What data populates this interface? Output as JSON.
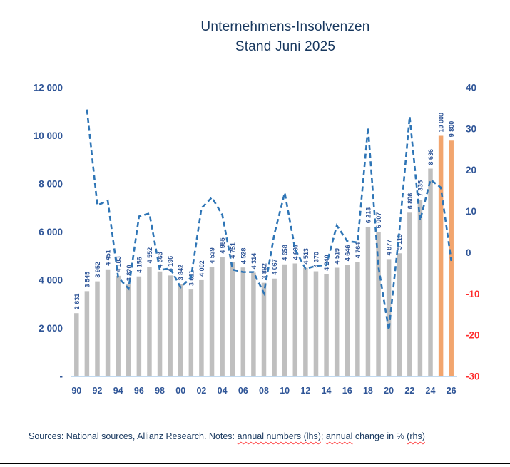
{
  "title": {
    "line1": "Unternehmens-Insolvenzen",
    "line2": "Stand Juni 2025"
  },
  "footer": {
    "segments": [
      {
        "text": "Sources: National sources, Allianz Research. Notes: ",
        "wavy": false
      },
      {
        "text": "annual numbers (lhs)",
        "wavy": true
      },
      {
        "text": "; ",
        "wavy": false
      },
      {
        "text": "annual",
        "wavy": true
      },
      {
        "text": " change in % ",
        "wavy": false
      },
      {
        "text": "(rhs)",
        "wavy": true
      }
    ]
  },
  "chart_data": {
    "type": "bar",
    "title": "Unternehmens-Insolvenzen Stand Juni 2025",
    "categories": [
      1990,
      1991,
      1992,
      1993,
      1994,
      1995,
      1996,
      1997,
      1998,
      1999,
      2000,
      2001,
      2002,
      2003,
      2004,
      2005,
      2006,
      2007,
      2008,
      2009,
      2010,
      2011,
      2012,
      2013,
      2014,
      2015,
      2016,
      2017,
      2018,
      2019,
      2020,
      2021,
      2022,
      2023,
      2024,
      2025,
      2026
    ],
    "series": [
      {
        "name": "annual numbers (lhs)",
        "type": "bar",
        "values": [
          2631,
          3545,
          3952,
          4451,
          4183,
          3820,
          4156,
          4552,
          4363,
          4196,
          3842,
          3611,
          4002,
          4539,
          4955,
          4751,
          4528,
          4314,
          3892,
          4067,
          4658,
          4697,
          4513,
          4370,
          4240,
          4519,
          4646,
          4764,
          6213,
          6007,
          4877,
          5118,
          6806,
          7335,
          8636,
          10000,
          9800
        ]
      },
      {
        "name": "annual change in % (rhs)",
        "type": "line",
        "start_year": 1991,
        "values": [
          34.7,
          11.5,
          12.6,
          -6.0,
          -8.7,
          8.8,
          9.5,
          -4.2,
          -3.8,
          -8.4,
          -6.0,
          10.8,
          13.4,
          9.2,
          -4.1,
          -4.7,
          -4.7,
          -9.8,
          4.5,
          14.5,
          0.8,
          -3.9,
          -3.2,
          -3.0,
          6.6,
          2.8,
          2.5,
          30.4,
          -3.3,
          -18.8,
          4.9,
          33.0,
          7.8,
          17.7,
          15.8,
          -2.0
        ]
      }
    ],
    "forecast_years": [
      2025,
      2026
    ],
    "left_axis": {
      "range": [
        0,
        12000
      ],
      "ticks": [
        12000,
        10000,
        8000,
        6000,
        4000,
        2000,
        0
      ],
      "tick_labels": [
        "12 000",
        "10 000",
        "8 000",
        "6 000",
        "4 000",
        "2 000",
        "-"
      ]
    },
    "right_axis": {
      "range": [
        -30,
        40
      ],
      "ticks": [
        40,
        30,
        20,
        10,
        0,
        -10,
        -20,
        -30
      ]
    },
    "x_tick_labels": [
      "90",
      "92",
      "94",
      "96",
      "98",
      "00",
      "02",
      "04",
      "06",
      "08",
      "10",
      "12",
      "14",
      "16",
      "18",
      "20",
      "22",
      "24",
      "26"
    ],
    "grid": false,
    "legend": "none",
    "colors": {
      "bar": "#BFBFBF",
      "bar_forecast": "#F2A56E",
      "line": "#2E75B6",
      "tick_text": "#2F5597",
      "negative_tick_text": "#FF2B2B",
      "bar_label_text": "#2F5597",
      "baseline": "#9DC3E6",
      "title_text": "#17375E"
    }
  }
}
